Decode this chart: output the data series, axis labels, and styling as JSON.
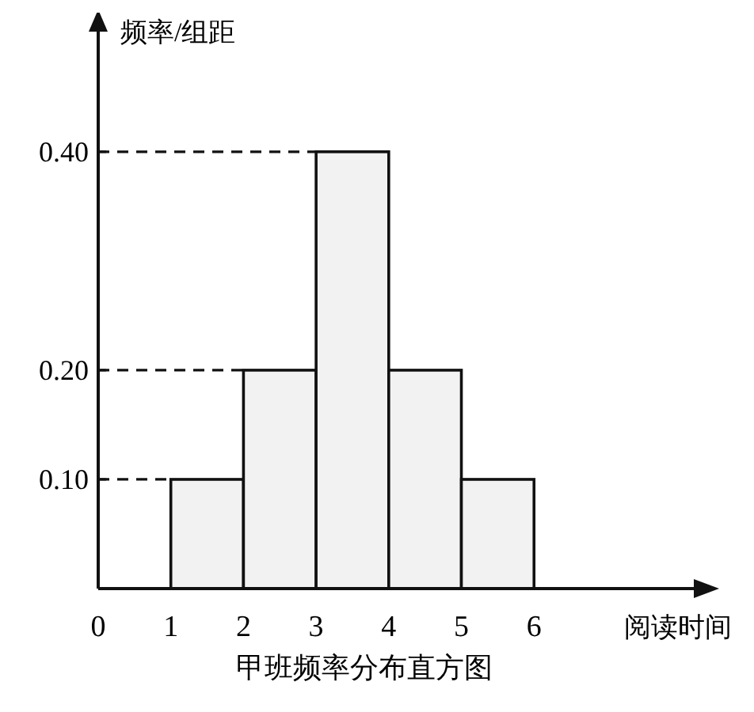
{
  "chart_data": {
    "type": "histogram",
    "title": "甲班频率分布直方图",
    "xlabel": "阅读时间",
    "ylabel": "频率/组距",
    "bins": [
      1,
      2,
      3,
      4,
      5,
      6
    ],
    "values": [
      0.1,
      0.2,
      0.4,
      0.2,
      0.1
    ],
    "color": "#f2f2f2",
    "xlim": [
      0,
      8.2
    ],
    "xticks": [
      0,
      1,
      2,
      3,
      4,
      5,
      6
    ],
    "ylim": [
      0,
      0.51
    ],
    "yticks": [
      {
        "value": 0.1,
        "label": "0.10"
      },
      {
        "value": 0.2,
        "label": "0.20"
      },
      {
        "value": 0.4,
        "label": "0.40"
      }
    ],
    "ref_lines": [
      {
        "axis": "y",
        "value": 0.4,
        "line_style": "dashed"
      },
      {
        "axis": "y",
        "value": 0.2,
        "line_style": "dashed"
      },
      {
        "axis": "y",
        "value": 0.1,
        "line_style": "dashed"
      }
    ]
  }
}
